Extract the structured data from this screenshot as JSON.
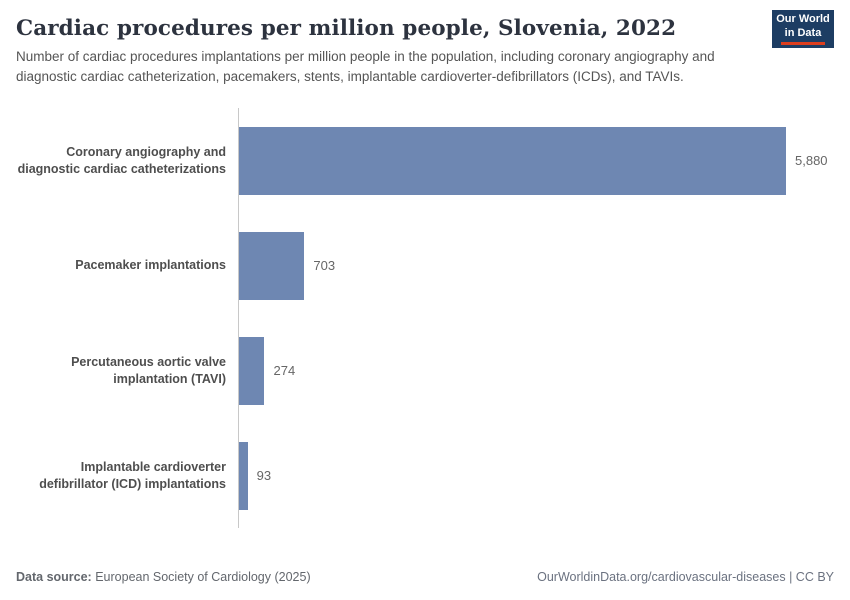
{
  "header": {
    "title": "Cardiac procedures per million people, Slovenia, 2022",
    "subtitle": "Number of cardiac procedures implantations per million people in the population, including coronary angiography and diagnostic cardiac catheterization, pacemakers, stents, implantable cardioverter-defibrillators (ICDs), and TAVIs.",
    "logo": {
      "line1": "Our World",
      "line2": "in Data"
    }
  },
  "chart_data": {
    "type": "bar",
    "orientation": "horizontal",
    "title": "Cardiac procedures per million people, Slovenia, 2022",
    "categories": [
      "Coronary angiography and diagnostic cardiac catheterizations",
      "Pacemaker implantations",
      "Percutaneous aortic valve implantation (TAVI)",
      "Implantable cardioverter defibrillator (ICD) implantations"
    ],
    "values": [
      5880,
      703,
      274,
      93
    ],
    "value_labels": [
      "5,880",
      "703",
      "274",
      "93"
    ],
    "xlabel": "",
    "ylabel": "",
    "xlim": [
      0,
      5880
    ],
    "grid": false,
    "legend": "none",
    "bar_color": "#6e87b2"
  },
  "colors": {
    "title": "#2d333f",
    "subtitle": "#555555",
    "bar": "#6e87b2",
    "axis_line": "#c8c8c8",
    "logo_background": "#1d3d63",
    "logo_accent_red": "#dc3e1e"
  },
  "footer": {
    "source_label": "Data source:",
    "source_text": " European Society of Cardiology (2025)",
    "right_text": "OurWorldinData.org/cardiovascular-diseases | CC BY"
  }
}
